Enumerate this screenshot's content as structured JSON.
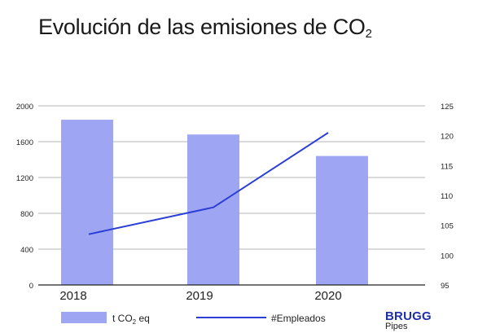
{
  "title": {
    "main": "Evolución de las emisiones de CO",
    "sub": "2"
  },
  "brand": {
    "name": "BRUGG",
    "sub": "Pipes"
  },
  "colors": {
    "bars": "#9ea5f2",
    "line": "#2b3ed6",
    "grid": "#b5b5b5",
    "axis": "#222222"
  },
  "chart_data": {
    "type": "bar",
    "categories": [
      "2018",
      "2019",
      "2020"
    ],
    "series": [
      {
        "name": "t CO2 eq",
        "type": "bar",
        "axis": "left",
        "values": [
          1845,
          1680,
          1440
        ]
      },
      {
        "name": "#Empleados",
        "type": "line",
        "axis": "right",
        "values": [
          103.5,
          108,
          120.5
        ]
      }
    ],
    "legend": [
      {
        "label": "t CO",
        "sub": "2",
        "suffix": " eq"
      },
      {
        "label": "#Empleados",
        "sub": "",
        "suffix": ""
      }
    ],
    "legend_position": "bottom",
    "y_left": {
      "min": 0,
      "max": 2000,
      "ticks": [
        0,
        400,
        800,
        1200,
        1600,
        2000
      ]
    },
    "y_right": {
      "min": 95,
      "max": 125,
      "ticks": [
        95,
        100,
        105,
        110,
        115,
        120,
        125
      ]
    },
    "grid": true
  }
}
